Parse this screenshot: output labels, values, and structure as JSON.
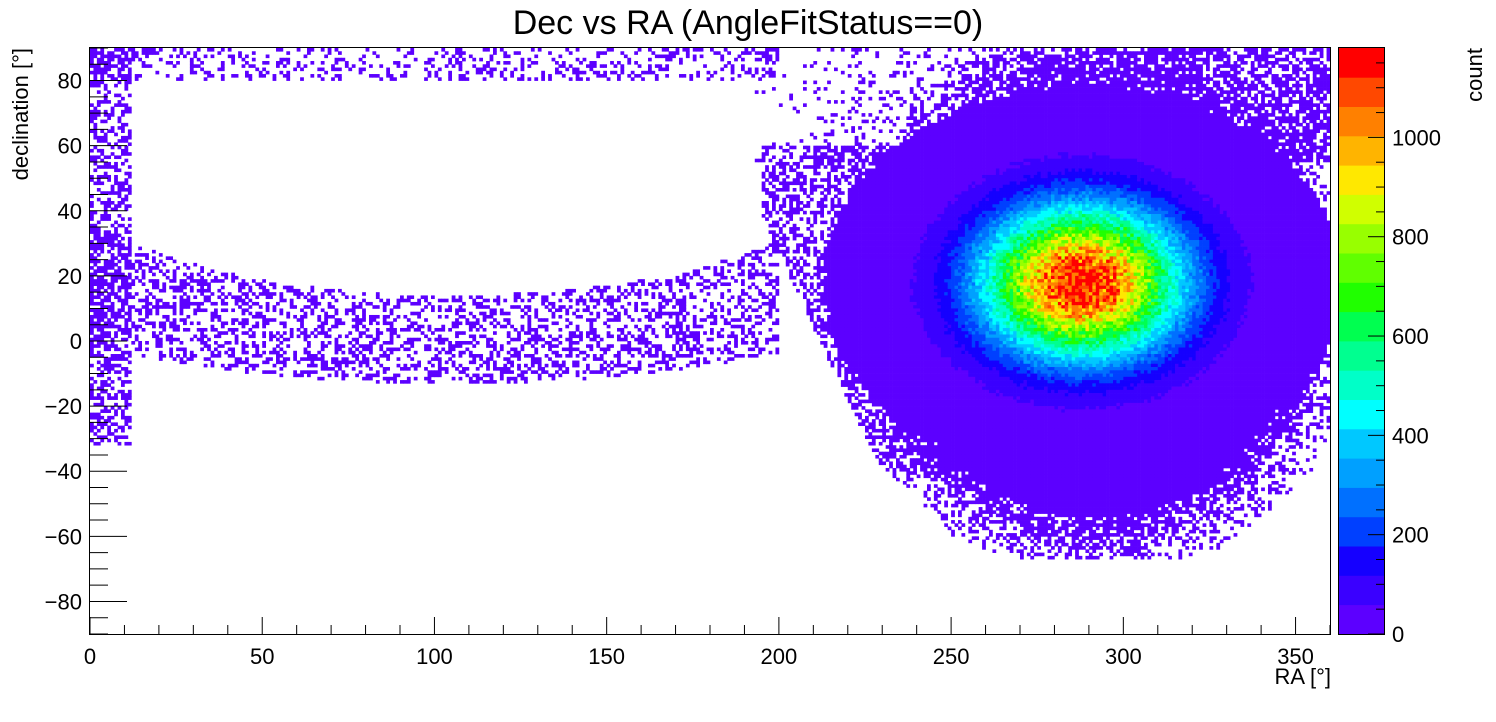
{
  "chart_data": {
    "type": "heatmap",
    "title": "Dec vs RA (AngleFitStatus==0)",
    "xlabel": "RA [°]",
    "ylabel": "declination [°]",
    "zlabel": "count",
    "xlim": [
      0,
      360
    ],
    "ylim": [
      -90,
      90
    ],
    "zlim": [
      0,
      1180
    ],
    "x_ticks": [
      0,
      50,
      100,
      150,
      200,
      250,
      300,
      350
    ],
    "x_tick_labels": [
      "0",
      "50",
      "100",
      "150",
      "200",
      "250",
      "300",
      "350"
    ],
    "y_ticks": [
      -80,
      -60,
      -40,
      -20,
      0,
      20,
      40,
      60,
      80
    ],
    "y_tick_labels": [
      "−80",
      "−60",
      "−40",
      "−20",
      "0",
      "20",
      "40",
      "60",
      "80"
    ],
    "z_ticks": [
      0,
      200,
      400,
      600,
      800,
      1000
    ],
    "z_tick_labels": [
      "0",
      "200",
      "400",
      "600",
      "800",
      "1000"
    ],
    "peak": {
      "ra": 288,
      "dec": 18,
      "count": 1180
    },
    "core_sigma": {
      "ra": 20,
      "dec": 16
    },
    "halo_region": {
      "ra_range": [
        200,
        360
      ],
      "dec_range": [
        -67,
        90
      ]
    },
    "sparse_region": {
      "ra_range": [
        0,
        200
      ],
      "dec_range": [
        -35,
        90
      ]
    },
    "grid": false,
    "legend": "color scale at right",
    "palette": [
      "#5c00ff",
      "#3a00ff",
      "#1500ff",
      "#0040ff",
      "#0070ff",
      "#00a0ff",
      "#00c8ff",
      "#00ffff",
      "#00ffc8",
      "#00ff90",
      "#00ff50",
      "#20ff00",
      "#60ff00",
      "#98ff00",
      "#d0ff00",
      "#ffe800",
      "#ffb400",
      "#ff8000",
      "#ff4800",
      "#ff0000"
    ]
  }
}
